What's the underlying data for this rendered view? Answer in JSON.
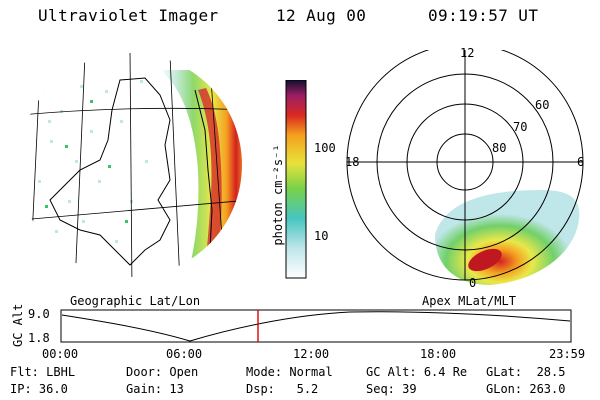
{
  "header": {
    "instrument": "Ultraviolet Imager",
    "date": "12 Aug 00",
    "time": "09:19:57 UT"
  },
  "left_panel": {
    "label": "Geographic Lat/Lon"
  },
  "right_panel": {
    "label": "Apex MLat/MLT",
    "mlt_labels": [
      "12",
      "18",
      "6",
      "0"
    ],
    "mlat_labels": [
      "60",
      "70",
      "80"
    ]
  },
  "colorbar": {
    "unit_label": "photon cm⁻²s⁻¹",
    "tick_labels": [
      "100",
      "10"
    ]
  },
  "altitude_plot": {
    "axis_label": "GC Alt",
    "y_ticks": [
      "9.0",
      "1.8"
    ],
    "x_ticks": [
      "00:00",
      "06:00",
      "12:00",
      "18:00",
      "23:59"
    ],
    "marker_color": "#dd0000"
  },
  "status": {
    "flt": {
      "key": "Flt:",
      "value": "LBHL"
    },
    "ip": {
      "key": "IP:",
      "value": "36.0"
    },
    "door": {
      "key": "Door:",
      "value": "Open"
    },
    "gain": {
      "key": "Gain:",
      "value": "13"
    },
    "mode": {
      "key": "Mode:",
      "value": "Normal"
    },
    "dsp": {
      "key": "Dsp:",
      "value": "5.2"
    },
    "gc_alt": {
      "key": "GC Alt:",
      "value": "6.4 Re"
    },
    "seq": {
      "key": "Seq:",
      "value": "39"
    },
    "glat": {
      "key": "GLat:",
      "value": "28.5"
    },
    "glon": {
      "key": "GLon:",
      "value": "263.0"
    }
  }
}
